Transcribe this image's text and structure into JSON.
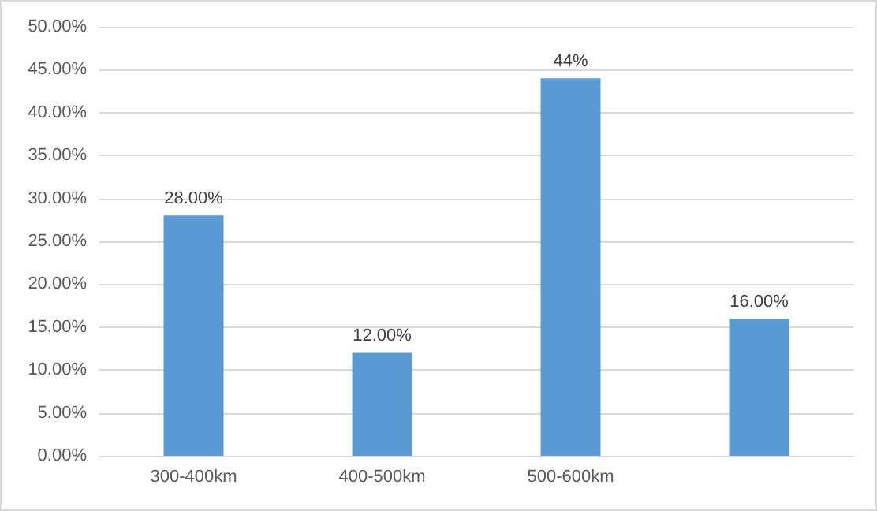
{
  "chart_data": {
    "type": "bar",
    "categories": [
      "300-400km",
      "400-500km",
      "500-600km",
      null
    ],
    "values": [
      28,
      12,
      44,
      16
    ],
    "color": "#5b9bd5",
    "value_labels": [
      "28.00%",
      "12.00%",
      "44%",
      "16.00%"
    ],
    "ylim": [
      0,
      50
    ],
    "yticks": [
      {
        "value": 0,
        "label": "0.00%"
      },
      {
        "value": 5,
        "label": "5.00%"
      },
      {
        "value": 10,
        "label": "10.00%"
      },
      {
        "value": 15,
        "label": "15.00%"
      },
      {
        "value": 20,
        "label": "20.00%"
      },
      {
        "value": 25,
        "label": "25.00%"
      },
      {
        "value": 30,
        "label": "30.00%"
      },
      {
        "value": 35,
        "label": "35.00%"
      },
      {
        "value": 40,
        "label": "40.00%"
      },
      {
        "value": 45,
        "label": "45.00%"
      },
      {
        "value": 50,
        "label": "50.00%"
      }
    ],
    "grid": "y"
  }
}
